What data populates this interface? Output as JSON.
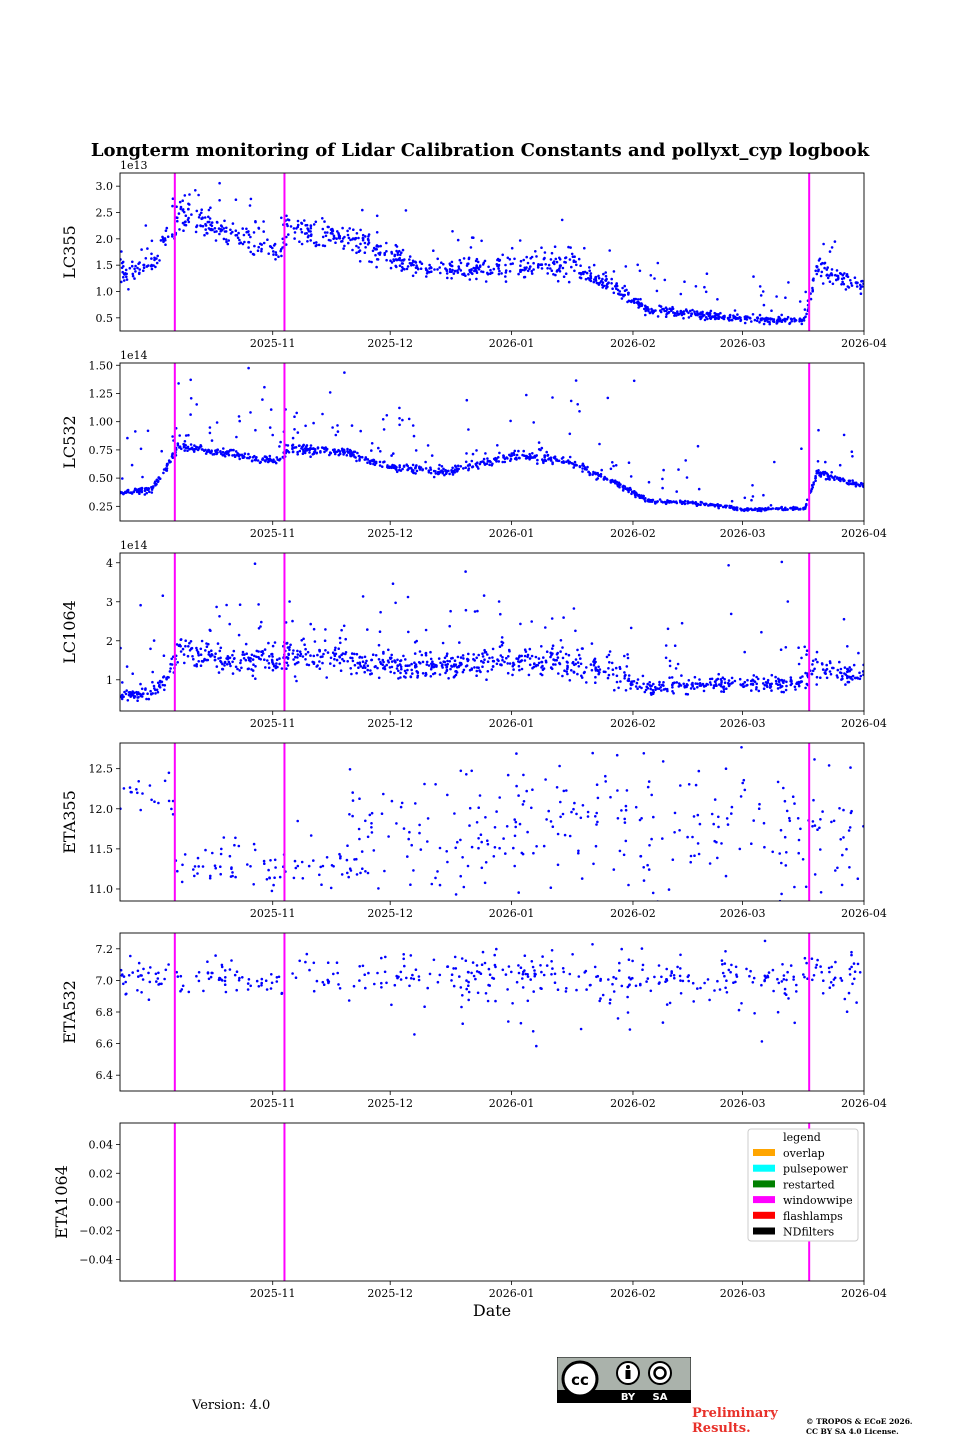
{
  "chart_title": "Longterm monitoring of Lidar Calibration Constants and pollyxt_cyp logbook",
  "footer": {
    "version": "Version: 4.0",
    "preliminary": "Preliminary Results.",
    "copyright_line1": "© TROPOS & ECoE 2026.",
    "copyright_line2": "CC BY SA 4.0 License.",
    "license_badge": {
      "cc": "cc",
      "by": "BY",
      "sa": "SA"
    }
  },
  "colors": {
    "points": "#0000ff",
    "windowwipe": "#ff00ff",
    "axis": "#000000"
  },
  "chart_data": {
    "type": "scatter",
    "xlabel": "Date",
    "x_range": [
      "2025-09-23",
      "2026-04-01"
    ],
    "x_ticks": [
      "2025-11",
      "2025-12",
      "2026-01",
      "2026-02",
      "2026-03",
      "2026-04"
    ],
    "x_tick_dates": [
      "2025-11-01",
      "2025-12-01",
      "2026-01-01",
      "2026-02-01",
      "2026-03-01",
      "2026-04-01"
    ],
    "windowwipe_events": [
      "2025-10-07",
      "2025-11-04",
      "2026-03-18"
    ],
    "panels": [
      {
        "ylabel": "LC355",
        "exponent": "1e13",
        "ylim": [
          0.25,
          3.25
        ],
        "yticks": [
          0.5,
          1.0,
          1.5,
          2.0,
          2.5,
          3.0
        ],
        "ytick_labels": [
          "0.5",
          "1.0",
          "1.5",
          "2.0",
          "2.5",
          "3.0"
        ],
        "trend": [
          [
            "2025-09-23",
            1.35
          ],
          [
            "2025-10-01",
            1.45
          ],
          [
            "2025-10-05",
            2.0
          ],
          [
            "2025-10-08",
            2.5
          ],
          [
            "2025-10-20",
            2.1
          ],
          [
            "2025-11-03",
            1.75
          ],
          [
            "2025-11-05",
            2.15
          ],
          [
            "2025-11-20",
            2.0
          ],
          [
            "2025-12-01",
            1.65
          ],
          [
            "2025-12-10",
            1.4
          ],
          [
            "2026-01-01",
            1.45
          ],
          [
            "2026-01-15",
            1.5
          ],
          [
            "2026-01-25",
            1.2
          ],
          [
            "2026-02-05",
            0.65
          ],
          [
            "2026-02-20",
            0.55
          ],
          [
            "2026-03-01",
            0.48
          ],
          [
            "2026-03-17",
            0.45
          ],
          [
            "2026-03-20",
            1.45
          ],
          [
            "2026-04-01",
            1.1
          ]
        ],
        "sigma": 0.07,
        "dense": 1000,
        "sparse": 130,
        "sparse_spread": 0.45
      },
      {
        "ylabel": "LC532",
        "exponent": "1e14",
        "ylim": [
          0.12,
          1.52
        ],
        "yticks": [
          0.25,
          0.5,
          0.75,
          1.0,
          1.25,
          1.5
        ],
        "ytick_labels": [
          "0.25",
          "0.50",
          "0.75",
          "1.00",
          "1.25",
          "1.50"
        ],
        "trend": [
          [
            "2025-09-23",
            0.37
          ],
          [
            "2025-10-01",
            0.4
          ],
          [
            "2025-10-05",
            0.6
          ],
          [
            "2025-10-08",
            0.78
          ],
          [
            "2025-10-20",
            0.72
          ],
          [
            "2025-11-03",
            0.65
          ],
          [
            "2025-11-05",
            0.76
          ],
          [
            "2025-11-20",
            0.72
          ],
          [
            "2025-12-01",
            0.6
          ],
          [
            "2025-12-15",
            0.55
          ],
          [
            "2026-01-01",
            0.7
          ],
          [
            "2026-01-15",
            0.65
          ],
          [
            "2026-01-25",
            0.5
          ],
          [
            "2026-02-05",
            0.3
          ],
          [
            "2026-02-20",
            0.27
          ],
          [
            "2026-03-01",
            0.22
          ],
          [
            "2026-03-17",
            0.23
          ],
          [
            "2026-03-20",
            0.55
          ],
          [
            "2026-04-01",
            0.42
          ]
        ],
        "sigma": 0.03,
        "dense": 1000,
        "sparse": 150,
        "sparse_spread": 0.3
      },
      {
        "ylabel": "LC1064",
        "exponent": "1e14",
        "ylim": [
          0.2,
          4.25
        ],
        "yticks": [
          1,
          2,
          3,
          4
        ],
        "ytick_labels": [
          "1",
          "2",
          "3",
          "4"
        ],
        "trend": [
          [
            "2025-09-23",
            0.6
          ],
          [
            "2025-10-01",
            0.65
          ],
          [
            "2025-10-05",
            1.0
          ],
          [
            "2025-10-08",
            1.75
          ],
          [
            "2025-10-20",
            1.5
          ],
          [
            "2025-11-03",
            1.45
          ],
          [
            "2025-11-05",
            1.65
          ],
          [
            "2025-11-20",
            1.5
          ],
          [
            "2025-12-01",
            1.35
          ],
          [
            "2025-12-15",
            1.35
          ],
          [
            "2026-01-01",
            1.5
          ],
          [
            "2026-01-15",
            1.4
          ],
          [
            "2026-01-25",
            1.25
          ],
          [
            "2026-02-05",
            0.75
          ],
          [
            "2026-02-20",
            0.9
          ],
          [
            "2026-03-01",
            0.9
          ],
          [
            "2026-03-17",
            0.95
          ],
          [
            "2026-03-20",
            1.3
          ],
          [
            "2026-04-01",
            1.1
          ]
        ],
        "sigma": 0.12,
        "dense": 1000,
        "sparse": 150,
        "sparse_spread": 1.0
      },
      {
        "ylabel": "ETA355",
        "exponent": "",
        "ylim": [
          10.85,
          12.82
        ],
        "yticks": [
          11.0,
          11.5,
          12.0,
          12.5
        ],
        "ytick_labels": [
          "11.0",
          "11.5",
          "12.0",
          "12.5"
        ],
        "scatter_groups": [
          [
            "2025-09-23",
            "2025-10-07",
            12.15,
            0.12,
            20
          ],
          [
            "2025-10-07",
            "2025-11-25",
            11.28,
            0.15,
            85
          ],
          [
            "2025-11-20",
            "2026-04-01",
            11.75,
            0.45,
            300
          ]
        ]
      },
      {
        "ylabel": "ETA532",
        "exponent": "",
        "ylim": [
          6.3,
          7.3
        ],
        "yticks": [
          6.4,
          6.6,
          6.8,
          7.0,
          7.2
        ],
        "ytick_labels": [
          "6.4",
          "6.6",
          "6.8",
          "7.0",
          "7.2"
        ],
        "scatter_groups": [
          [
            "2025-09-23",
            "2026-04-01",
            7.02,
            0.07,
            380
          ],
          [
            "2025-12-01",
            "2026-04-01",
            6.9,
            0.15,
            60
          ]
        ]
      },
      {
        "ylabel": "ETA1064",
        "exponent": "",
        "ylim": [
          -0.055,
          0.055
        ],
        "yticks": [
          -0.04,
          -0.02,
          0.0,
          0.02,
          0.04
        ],
        "ytick_labels": [
          "−0.04",
          "−0.02",
          "0.00",
          "0.02",
          "0.04"
        ]
      }
    ],
    "legend": {
      "title": "legend",
      "placement": "upper-right",
      "entries": [
        {
          "label": "overlap",
          "color": "#ffa500"
        },
        {
          "label": "pulsepower",
          "color": "#00ffff"
        },
        {
          "label": "restarted",
          "color": "#008000"
        },
        {
          "label": "windowwipe",
          "color": "#ff00ff"
        },
        {
          "label": "flashlamps",
          "color": "#ff0000"
        },
        {
          "label": "NDfilters",
          "color": "#000000"
        }
      ]
    }
  }
}
